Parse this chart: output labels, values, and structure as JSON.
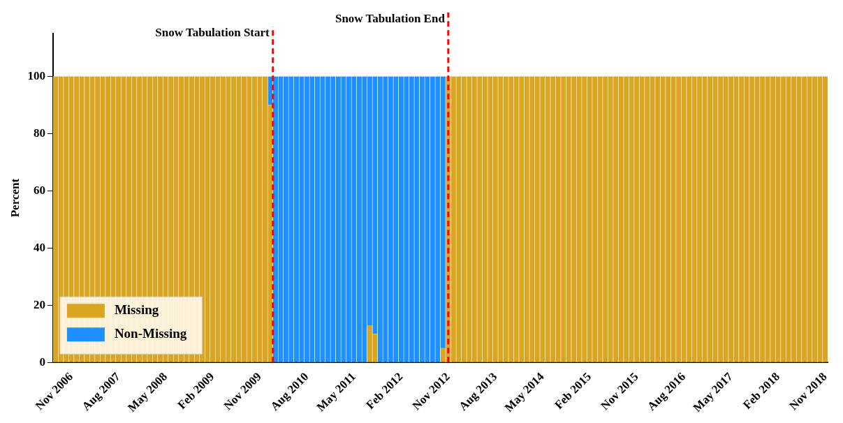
{
  "chart_data": {
    "type": "bar",
    "stacked": true,
    "ylabel": "Percent",
    "x": [
      "2006-08",
      "2006-09",
      "2006-10",
      "2006-11",
      "2006-12",
      "2007-01",
      "2007-02",
      "2007-03",
      "2007-04",
      "2007-05",
      "2007-06",
      "2007-07",
      "2007-08",
      "2007-09",
      "2007-10",
      "2007-11",
      "2007-12",
      "2008-01",
      "2008-02",
      "2008-03",
      "2008-04",
      "2008-05",
      "2008-06",
      "2008-07",
      "2008-08",
      "2008-09",
      "2008-10",
      "2008-11",
      "2008-12",
      "2009-01",
      "2009-02",
      "2009-03",
      "2009-04",
      "2009-05",
      "2009-06",
      "2009-07",
      "2009-08",
      "2009-09",
      "2009-10",
      "2009-11",
      "2009-12",
      "2010-01",
      "2010-02",
      "2010-03",
      "2010-04",
      "2010-05",
      "2010-06",
      "2010-07",
      "2010-08",
      "2010-09",
      "2010-10",
      "2010-11",
      "2010-12",
      "2011-01",
      "2011-02",
      "2011-03",
      "2011-04",
      "2011-05",
      "2011-06",
      "2011-07",
      "2011-08",
      "2011-09",
      "2011-10",
      "2011-11",
      "2011-12",
      "2012-01",
      "2012-02",
      "2012-03",
      "2012-04",
      "2012-05",
      "2012-06",
      "2012-07",
      "2012-08",
      "2012-09",
      "2012-10",
      "2012-11",
      "2012-12",
      "2013-01",
      "2013-02",
      "2013-03",
      "2013-04",
      "2013-05",
      "2013-06",
      "2013-07",
      "2013-08",
      "2013-09",
      "2013-10",
      "2013-11",
      "2013-12",
      "2014-01",
      "2014-02",
      "2014-03",
      "2014-04",
      "2014-05",
      "2014-06",
      "2014-07",
      "2014-08",
      "2014-09",
      "2014-10",
      "2014-11",
      "2014-12",
      "2015-01",
      "2015-02",
      "2015-03",
      "2015-04",
      "2015-05",
      "2015-06",
      "2015-07",
      "2015-08",
      "2015-09",
      "2015-10",
      "2015-11",
      "2015-12",
      "2016-01",
      "2016-02",
      "2016-03",
      "2016-04",
      "2016-05",
      "2016-06",
      "2016-07",
      "2016-08",
      "2016-09",
      "2016-10",
      "2016-11",
      "2016-12",
      "2017-01",
      "2017-02",
      "2017-03",
      "2017-04",
      "2017-05",
      "2017-06",
      "2017-07",
      "2017-08",
      "2017-09",
      "2017-10",
      "2017-11",
      "2017-12",
      "2018-01",
      "2018-02",
      "2018-03",
      "2018-04",
      "2018-05",
      "2018-06",
      "2018-07",
      "2018-08",
      "2018-09",
      "2018-10",
      "2018-11"
    ],
    "series": [
      {
        "name": "Missing",
        "color": "#daa520",
        "values": [
          100,
          100,
          100,
          100,
          100,
          100,
          100,
          100,
          100,
          100,
          100,
          100,
          100,
          100,
          100,
          100,
          100,
          100,
          100,
          100,
          100,
          100,
          100,
          100,
          100,
          100,
          100,
          100,
          100,
          100,
          100,
          100,
          100,
          100,
          100,
          100,
          100,
          100,
          100,
          100,
          100,
          90,
          0,
          0,
          0,
          0,
          0,
          0,
          0,
          0,
          0,
          0,
          0,
          0,
          0,
          0,
          0,
          0,
          0,
          0,
          13,
          10,
          0,
          0,
          0,
          0,
          0,
          0,
          0,
          0,
          0,
          0,
          0,
          0,
          5,
          100,
          100,
          100,
          100,
          100,
          100,
          100,
          100,
          100,
          100,
          100,
          100,
          100,
          100,
          100,
          100,
          100,
          100,
          100,
          100,
          100,
          100,
          100,
          100,
          100,
          100,
          100,
          100,
          100,
          100,
          100,
          100,
          100,
          100,
          100,
          100,
          100,
          100,
          100,
          100,
          100,
          100,
          100,
          100,
          100,
          100,
          100,
          100,
          100,
          100,
          100,
          100,
          100,
          100,
          100,
          100,
          100,
          100,
          100,
          100,
          100,
          100,
          100,
          100,
          100,
          100,
          100,
          100,
          100,
          100,
          100,
          100,
          100
        ]
      },
      {
        "name": "Non-Missing",
        "color": "#1e90ff",
        "values": [
          0,
          0,
          0,
          0,
          0,
          0,
          0,
          0,
          0,
          0,
          0,
          0,
          0,
          0,
          0,
          0,
          0,
          0,
          0,
          0,
          0,
          0,
          0,
          0,
          0,
          0,
          0,
          0,
          0,
          0,
          0,
          0,
          0,
          0,
          0,
          0,
          0,
          0,
          0,
          0,
          0,
          10,
          100,
          100,
          100,
          100,
          100,
          100,
          100,
          100,
          100,
          100,
          100,
          100,
          100,
          100,
          100,
          100,
          100,
          100,
          87,
          90,
          100,
          100,
          100,
          100,
          100,
          100,
          100,
          100,
          100,
          100,
          100,
          100,
          95,
          0,
          0,
          0,
          0,
          0,
          0,
          0,
          0,
          0,
          0,
          0,
          0,
          0,
          0,
          0,
          0,
          0,
          0,
          0,
          0,
          0,
          0,
          0,
          0,
          0,
          0,
          0,
          0,
          0,
          0,
          0,
          0,
          0,
          0,
          0,
          0,
          0,
          0,
          0,
          0,
          0,
          0,
          0,
          0,
          0,
          0,
          0,
          0,
          0,
          0,
          0,
          0,
          0,
          0,
          0,
          0,
          0,
          0,
          0,
          0,
          0,
          0,
          0,
          0,
          0,
          0,
          0,
          0,
          0,
          0,
          0,
          0,
          0
        ]
      }
    ],
    "xlim": [
      "2006-08-01",
      "2018-12-01"
    ],
    "xticks": [
      {
        "value": "2006-11",
        "label": "Nov 2006"
      },
      {
        "value": "2007-08",
        "label": "Aug 2007"
      },
      {
        "value": "2008-05",
        "label": "May 2008"
      },
      {
        "value": "2009-02",
        "label": "Feb 2009"
      },
      {
        "value": "2009-11",
        "label": "Nov 2009"
      },
      {
        "value": "2010-08",
        "label": "Aug 2010"
      },
      {
        "value": "2011-05",
        "label": "May 2011"
      },
      {
        "value": "2012-02",
        "label": "Feb 2012"
      },
      {
        "value": "2012-11",
        "label": "Nov 2012"
      },
      {
        "value": "2013-08",
        "label": "Aug 2013"
      },
      {
        "value": "2014-05",
        "label": "May 2014"
      },
      {
        "value": "2015-02",
        "label": "Feb 2015"
      },
      {
        "value": "2015-11",
        "label": "Nov 2015"
      },
      {
        "value": "2016-08",
        "label": "Aug 2016"
      },
      {
        "value": "2017-05",
        "label": "May 2017"
      },
      {
        "value": "2018-02",
        "label": "Feb 2018"
      },
      {
        "value": "2018-11",
        "label": "Nov 2018"
      }
    ],
    "ylim": [
      0,
      115
    ],
    "yticks": [
      0,
      20,
      40,
      60,
      80,
      100
    ],
    "ref_lines": [
      {
        "axis": "x",
        "value": "2010-02-01",
        "label": "Snow Tabulation Start",
        "color": "#ff0000",
        "line_style": "dashed"
      },
      {
        "axis": "x",
        "value": "2012-11-16",
        "label": "Snow Tabulation End",
        "color": "#ff0000",
        "line_style": "dashed"
      }
    ],
    "legend": "bottom left",
    "grid": false
  }
}
